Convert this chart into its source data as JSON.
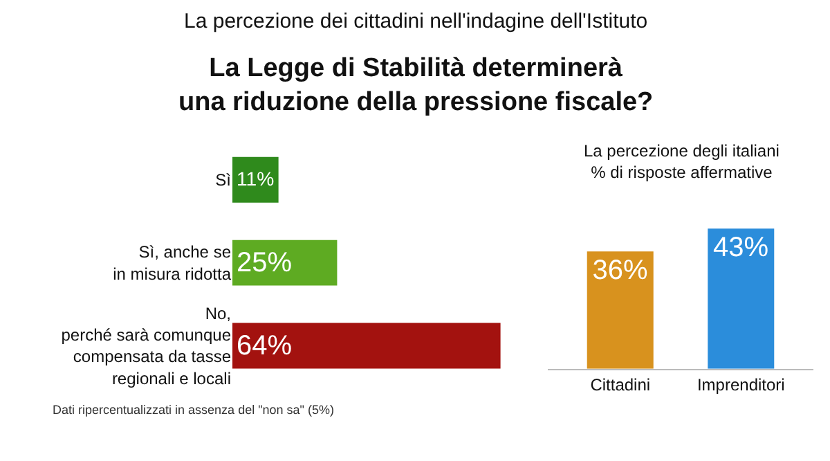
{
  "chart_data": [
    {
      "type": "bar",
      "orientation": "horizontal",
      "subtitle": "La percezione dei cittadini nell'indagine dell'Istituto",
      "title": "La Legge di Stabilità determinerà\nuna riduzione della pressione fiscale?",
      "categories": [
        "Sì",
        "Sì, anche se\nin misura ridotta",
        "No,\nperché sarà comunque\ncompensata da tasse\nregionali e locali"
      ],
      "values": [
        11,
        25,
        64
      ],
      "value_labels": [
        "11%",
        "25%",
        "64%"
      ],
      "colors": [
        "#2f8a1c",
        "#5eab22",
        "#a3120f"
      ],
      "annotations": [
        "Dati ripercentualizzati in assenza del \"non sa\" (5%)"
      ]
    },
    {
      "type": "bar",
      "title": "La percezione degli italiani\n% di risposte affermative",
      "categories": [
        "Cittadini",
        "Imprenditori"
      ],
      "values": [
        36,
        43
      ],
      "value_labels": [
        "36%",
        "43%"
      ],
      "colors": [
        "#d8921e",
        "#2b8ddb"
      ]
    }
  ]
}
